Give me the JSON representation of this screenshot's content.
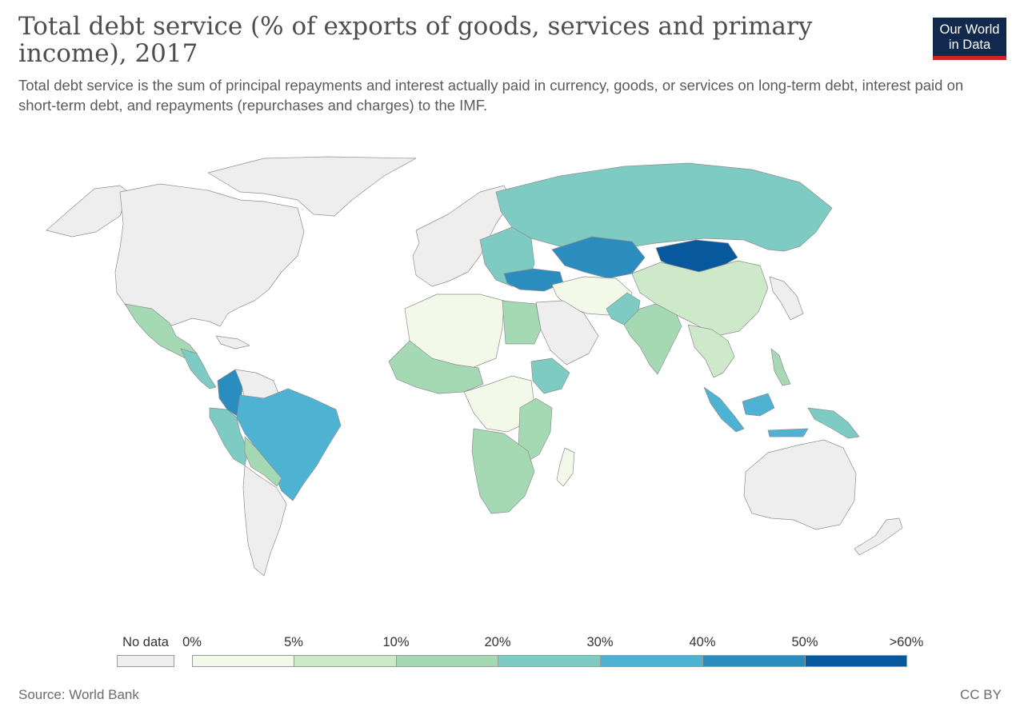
{
  "title": "Total debt service (% of exports of goods, services and primary income), 2017",
  "subtitle": "Total debt service is the sum of principal repayments and interest actually paid in currency, goods, or services on long-term debt, interest paid on short-term debt, and repayments (repurchases and charges) to the IMF.",
  "logo": {
    "line1": "Our World",
    "line2": "in Data",
    "bg_color": "#12294d",
    "accent_color": "#ce261e"
  },
  "source": "Source: World Bank",
  "license": "CC BY",
  "legend": {
    "no_data_label": "No data",
    "no_data_color": "#eeeeee",
    "bins": [
      {
        "label": "0%",
        "color": "#f2f9e9"
      },
      {
        "label": "5%",
        "color": "#cde9c9"
      },
      {
        "label": "10%",
        "color": "#a5d9b4"
      },
      {
        "label": "20%",
        "color": "#7dcbc3"
      },
      {
        "label": "30%",
        "color": "#4eb3d3"
      },
      {
        "label": "40%",
        "color": "#2b8cbe"
      },
      {
        "label": "50%",
        "color": "#08589e"
      }
    ],
    "last_label": ">60%"
  },
  "regions": [
    {
      "name": "Canada and USA",
      "bin": "none"
    },
    {
      "name": "Greenland",
      "bin": "none"
    },
    {
      "name": "Alaska",
      "bin": "none"
    },
    {
      "name": "Mexico",
      "bin": "10%"
    },
    {
      "name": "Central America",
      "bin": "20%"
    },
    {
      "name": "Colombia",
      "bin": "40%"
    },
    {
      "name": "Venezuela",
      "bin": "none"
    },
    {
      "name": "Ecuador and Peru",
      "bin": "20%"
    },
    {
      "name": "Brazil",
      "bin": "30%"
    },
    {
      "name": "Bolivia and Paraguay",
      "bin": "10%"
    },
    {
      "name": "Argentina and Chile",
      "bin": "none"
    },
    {
      "name": "Europe",
      "bin": "none"
    },
    {
      "name": "Eastern Europe",
      "bin": "20%"
    },
    {
      "name": "Russia",
      "bin": "20%"
    },
    {
      "name": "Kazakhstan",
      "bin": "40%"
    },
    {
      "name": "Mongolia",
      "bin": "50%"
    },
    {
      "name": "Turkey",
      "bin": "40%"
    },
    {
      "name": "China",
      "bin": "5%"
    },
    {
      "name": "Iran and Central Asia",
      "bin": "0%"
    },
    {
      "name": "Pakistan",
      "bin": "20%"
    },
    {
      "name": "India",
      "bin": "10%"
    },
    {
      "name": "Southeast Asia",
      "bin": "5%"
    },
    {
      "name": "Indonesia",
      "bin": "30%"
    },
    {
      "name": "Papua New Guinea",
      "bin": "20%"
    },
    {
      "name": "Philippines",
      "bin": "10%"
    },
    {
      "name": "Arabian Peninsula",
      "bin": "none"
    },
    {
      "name": "Japan and Korea",
      "bin": "none"
    },
    {
      "name": "North Africa",
      "bin": "0%"
    },
    {
      "name": "Egypt",
      "bin": "10%"
    },
    {
      "name": "West Africa",
      "bin": "10%"
    },
    {
      "name": "Ethiopia",
      "bin": "20%"
    },
    {
      "name": "Central Africa",
      "bin": "0%"
    },
    {
      "name": "East Africa",
      "bin": "10%"
    },
    {
      "name": "Southern Africa",
      "bin": "10%"
    },
    {
      "name": "Madagascar",
      "bin": "0%"
    },
    {
      "name": "Australia",
      "bin": "none"
    },
    {
      "name": "New Zealand",
      "bin": "none"
    }
  ]
}
